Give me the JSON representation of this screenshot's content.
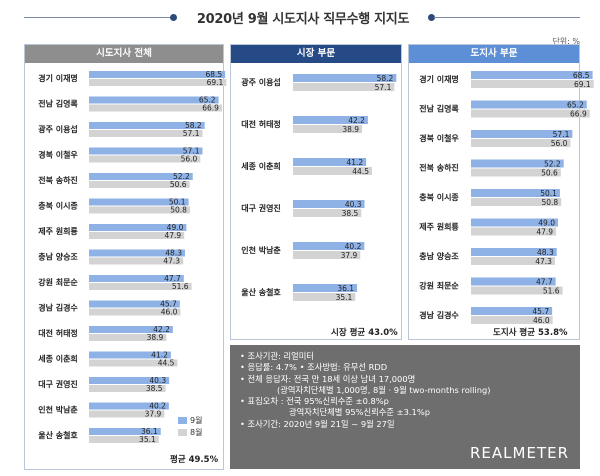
{
  "title": "2020년 9월 시도지사 직무수행 지지도",
  "unit": "단위: %",
  "legend": {
    "series": [
      {
        "name": "9월",
        "color": "#8fb2e6"
      },
      {
        "name": "8월",
        "color": "#d3d3d3"
      }
    ]
  },
  "panels": {
    "all": {
      "header": "시도지사 전체",
      "header_color": "#8e8e8e",
      "avg_label": "평균 49.5%"
    },
    "mayor": {
      "header": "시장 부문",
      "header_color": "#254a86",
      "avg_label": "시장 평균 43.0%"
    },
    "governor": {
      "header": "도지사 부문",
      "header_color": "#5c8fd6",
      "avg_label": "도지사 평균 53.8%"
    }
  },
  "chart_data": [
    {
      "type": "bar",
      "title": "시도지사 전체",
      "categories": [
        "경기 이재명",
        "전남 김영록",
        "광주 이용섭",
        "경북 이철우",
        "전북 송하진",
        "충북 이시종",
        "제주 원희룡",
        "충남 양승조",
        "강원 최문순",
        "경남 김경수",
        "대전 허태정",
        "세종 이춘희",
        "대구 권영진",
        "인천 박남춘",
        "울산 송철호"
      ],
      "series": [
        {
          "name": "9월",
          "values": [
            68.5,
            65.2,
            58.2,
            57.1,
            52.2,
            50.1,
            49.0,
            48.3,
            47.7,
            45.7,
            42.2,
            41.2,
            40.3,
            40.2,
            36.1
          ]
        },
        {
          "name": "8월",
          "values": [
            69.1,
            66.9,
            57.1,
            56.0,
            50.6,
            50.8,
            47.9,
            47.3,
            51.6,
            46.0,
            38.9,
            44.5,
            38.5,
            37.9,
            35.1
          ]
        }
      ],
      "xlim": [
        0,
        80
      ]
    },
    {
      "type": "bar",
      "title": "시장 부문",
      "categories": [
        "광주 이용섭",
        "대전 허태정",
        "세종 이춘희",
        "대구 권영진",
        "인천 박남춘",
        "울산 송철호"
      ],
      "series": [
        {
          "name": "9월",
          "values": [
            58.2,
            42.2,
            41.2,
            40.3,
            40.2,
            36.1
          ]
        },
        {
          "name": "8월",
          "values": [
            57.1,
            38.9,
            44.5,
            38.5,
            37.9,
            35.1
          ]
        }
      ],
      "xlim": [
        0,
        80
      ]
    },
    {
      "type": "bar",
      "title": "도지사 부문",
      "categories": [
        "경기 이재명",
        "전남 김영록",
        "경북 이철우",
        "전북 송하진",
        "충북 이시종",
        "제주 원희룡",
        "충남 양승조",
        "강원 최문순",
        "경남 김경수"
      ],
      "series": [
        {
          "name": "9월",
          "values": [
            68.5,
            65.2,
            57.1,
            52.2,
            50.1,
            49.0,
            48.3,
            47.7,
            45.7
          ]
        },
        {
          "name": "8월",
          "values": [
            69.1,
            66.9,
            56.0,
            50.6,
            50.8,
            47.9,
            47.3,
            51.6,
            46.0
          ]
        }
      ],
      "xlim": [
        0,
        80
      ]
    }
  ],
  "info": {
    "lines": [
      "• 조사기관: 리얼미터",
      "• 응답률: 4.7% • 조사방법: 유무선 RDD",
      "• 전체 응답자: 전국 만 18세 이상 남녀 17,000명",
      "(광역자치단체별 1,000명, 8월 · 9월 two-months rolling)",
      "• 표집오차 : 전국 95%신뢰수준 ±0.8%p",
      "광역자치단체별 95%신뢰수준 ±3.1%p",
      "• 조사기간: 2020년 9월 21일 ~ 9월 27일"
    ],
    "brand": "REALMETER"
  }
}
